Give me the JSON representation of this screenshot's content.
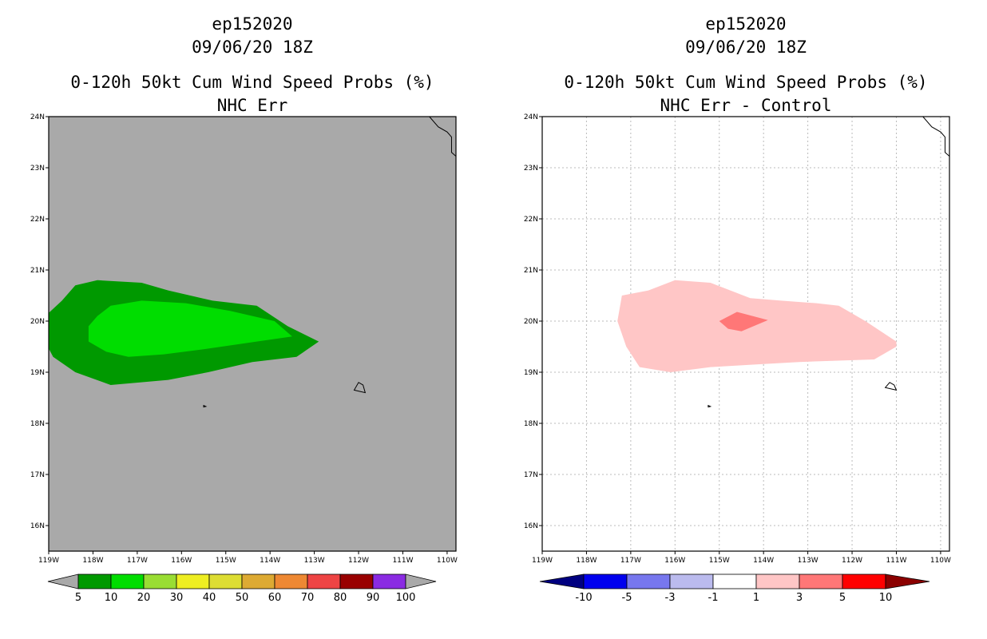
{
  "chart_data": [
    {
      "type": "contour-map",
      "title": "ep152020",
      "datetime": "09/06/20 18Z",
      "subtitle": "0-120h 50kt Cum Wind Speed Probs (%)",
      "product": "NHC Err",
      "x_ticks": [
        "119W",
        "118W",
        "117W",
        "116W",
        "115W",
        "114W",
        "113W",
        "112W",
        "111W",
        "110W"
      ],
      "y_ticks": [
        "16N",
        "17N",
        "18N",
        "19N",
        "20N",
        "21N",
        "22N",
        "23N",
        "24N"
      ],
      "xlim": [
        -119,
        -109.8
      ],
      "ylim": [
        15.5,
        24
      ],
      "background_color": "#a9a9a9",
      "colorbar": {
        "labels": [
          "5",
          "10",
          "20",
          "30",
          "40",
          "50",
          "60",
          "70",
          "80",
          "90",
          "100"
        ],
        "colors": [
          "#009900",
          "#00dd00",
          "#99dd33",
          "#eeee22",
          "#dddd33",
          "#ddaa33",
          "#ee8833",
          "#ee4444",
          "#990000",
          "#8a2be2"
        ]
      },
      "contours": [
        {
          "level": 5,
          "color": "#009900",
          "points": [
            [
              -118.7,
              20.4
            ],
            [
              -118.4,
              20.7
            ],
            [
              -117.9,
              20.8
            ],
            [
              -116.9,
              20.75
            ],
            [
              -116.3,
              20.6
            ],
            [
              -115.3,
              20.4
            ],
            [
              -114.3,
              20.3
            ],
            [
              -113.6,
              19.9
            ],
            [
              -112.9,
              19.6
            ],
            [
              -113.4,
              19.3
            ],
            [
              -114.4,
              19.2
            ],
            [
              -115.4,
              19.0
            ],
            [
              -116.3,
              18.85
            ],
            [
              -117.6,
              18.75
            ],
            [
              -118.4,
              19.0
            ],
            [
              -118.9,
              19.3
            ],
            [
              -119.2,
              19.8
            ],
            [
              -119.2,
              20.0
            ]
          ]
        },
        {
          "level": 10,
          "color": "#00dd00",
          "points": [
            [
              -117.9,
              20.1
            ],
            [
              -117.6,
              20.3
            ],
            [
              -116.9,
              20.4
            ],
            [
              -115.9,
              20.35
            ],
            [
              -114.9,
              20.2
            ],
            [
              -113.9,
              20.0
            ],
            [
              -113.5,
              19.7
            ],
            [
              -114.3,
              19.6
            ],
            [
              -115.5,
              19.45
            ],
            [
              -116.4,
              19.35
            ],
            [
              -117.2,
              19.3
            ],
            [
              -117.7,
              19.4
            ],
            [
              -118.1,
              19.6
            ],
            [
              -118.1,
              19.9
            ]
          ]
        }
      ],
      "islands": [
        {
          "points": [
            [
              -112.0,
              18.8
            ],
            [
              -111.9,
              18.75
            ],
            [
              -111.85,
              18.6
            ],
            [
              -112.1,
              18.65
            ]
          ]
        },
        {
          "points": [
            [
              -115.5,
              18.35
            ],
            [
              -115.45,
              18.33
            ],
            [
              -115.5,
              18.32
            ]
          ]
        }
      ]
    },
    {
      "type": "contour-map",
      "title": "ep152020",
      "datetime": "09/06/20 18Z",
      "subtitle": "0-120h 50kt Cum Wind Speed Probs (%)",
      "product": "NHC Err - Control",
      "x_ticks": [
        "119W",
        "118W",
        "117W",
        "116W",
        "115W",
        "114W",
        "113W",
        "112W",
        "111W",
        "110W"
      ],
      "y_ticks": [
        "16N",
        "17N",
        "18N",
        "19N",
        "20N",
        "21N",
        "22N",
        "23N",
        "24N"
      ],
      "xlim": [
        -119,
        -109.8
      ],
      "ylim": [
        15.5,
        24
      ],
      "background_color": "#ffffff",
      "grid": true,
      "colorbar": {
        "labels": [
          "-10",
          "-5",
          "-3",
          "-1",
          "1",
          "3",
          "5",
          "10"
        ],
        "colors": [
          "#000080",
          "#0000ee",
          "#7777ee",
          "#bbbbee",
          "#ffffff",
          "#ffc6c6",
          "#ff7777",
          "#ff0000",
          "#8b0000"
        ]
      },
      "contours": [
        {
          "level": 1,
          "color": "#ffc6c6",
          "points": [
            [
              -117.2,
              20.5
            ],
            [
              -116.6,
              20.6
            ],
            [
              -116.0,
              20.8
            ],
            [
              -115.2,
              20.75
            ],
            [
              -114.3,
              20.45
            ],
            [
              -113.6,
              20.4
            ],
            [
              -112.8,
              20.35
            ],
            [
              -112.3,
              20.3
            ],
            [
              -111.7,
              20.0
            ],
            [
              -111.0,
              19.6
            ],
            [
              -111.0,
              19.5
            ],
            [
              -111.5,
              19.25
            ],
            [
              -113.2,
              19.2
            ],
            [
              -114.2,
              19.15
            ],
            [
              -115.2,
              19.1
            ],
            [
              -116.1,
              19.0
            ],
            [
              -116.8,
              19.1
            ],
            [
              -117.1,
              19.5
            ],
            [
              -117.3,
              20.0
            ]
          ]
        },
        {
          "level": 3,
          "color": "#ff7777",
          "points": [
            [
              -115.0,
              20.0
            ],
            [
              -114.6,
              20.18
            ],
            [
              -113.9,
              20.02
            ],
            [
              -114.5,
              19.8
            ],
            [
              -114.8,
              19.85
            ]
          ]
        }
      ],
      "islands": [
        {
          "points": [
            [
              -111.15,
              18.8
            ],
            [
              -111.05,
              18.75
            ],
            [
              -111.0,
              18.65
            ],
            [
              -111.25,
              18.7
            ]
          ]
        },
        {
          "points": [
            [
              -115.25,
              18.35
            ],
            [
              -115.2,
              18.33
            ],
            [
              -115.25,
              18.32
            ]
          ]
        }
      ]
    }
  ]
}
